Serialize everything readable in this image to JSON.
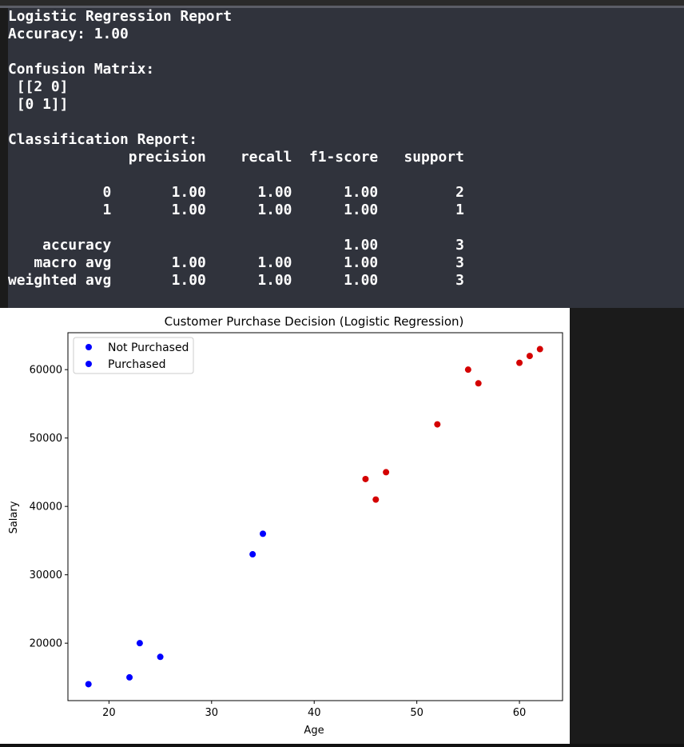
{
  "terminal": {
    "lines": [
      "Logistic Regression Report",
      "Accuracy: 1.00",
      "",
      "Confusion Matrix:",
      " [[2 0]",
      " [0 1]]",
      "",
      "Classification Report:",
      "              precision    recall  f1-score   support",
      "",
      "           0       1.00      1.00      1.00         2",
      "           1       1.00      1.00      1.00         1",
      "",
      "    accuracy                           1.00         3",
      "   macro avg       1.00      1.00      1.00         3",
      "weighted avg       1.00      1.00      1.00         3"
    ]
  },
  "colors": {
    "terminal_bg": "#30333c",
    "terminal_text": "#ffffff",
    "not_purchased": "#0000ff",
    "purchased": "#d40000",
    "legend_purchased_marker": "#0000ff"
  },
  "chart_data": {
    "type": "scatter",
    "title": "Customer Purchase Decision (Logistic Regression)",
    "xlabel": "Age",
    "ylabel": "Salary",
    "xlim": [
      16,
      64.2
    ],
    "ylim": [
      11600,
      65400
    ],
    "x_ticks": [
      20,
      30,
      40,
      50,
      60
    ],
    "y_ticks": [
      20000,
      30000,
      40000,
      50000,
      60000
    ],
    "x_tick_labels": [
      "20",
      "30",
      "40",
      "50",
      "60"
    ],
    "y_tick_labels": [
      "20000",
      "30000",
      "40000",
      "50000",
      "60000"
    ],
    "grid": false,
    "legend_position": "top-left",
    "legend": [
      "Not Purchased",
      "Purchased"
    ],
    "series": [
      {
        "name": "Not Purchased",
        "color": "#0000ff",
        "points": [
          {
            "x": 18,
            "y": 14000
          },
          {
            "x": 22,
            "y": 15000
          },
          {
            "x": 23,
            "y": 20000
          },
          {
            "x": 25,
            "y": 18000
          },
          {
            "x": 34,
            "y": 33000
          },
          {
            "x": 35,
            "y": 36000
          }
        ]
      },
      {
        "name": "Purchased",
        "color": "#d40000",
        "points": [
          {
            "x": 45,
            "y": 44000
          },
          {
            "x": 46,
            "y": 41000
          },
          {
            "x": 47,
            "y": 45000
          },
          {
            "x": 52,
            "y": 52000
          },
          {
            "x": 55,
            "y": 60000
          },
          {
            "x": 56,
            "y": 58000
          },
          {
            "x": 60,
            "y": 61000
          },
          {
            "x": 61,
            "y": 62000
          },
          {
            "x": 62,
            "y": 63000
          }
        ]
      }
    ]
  }
}
